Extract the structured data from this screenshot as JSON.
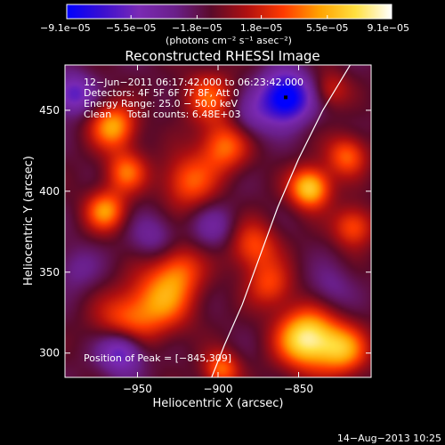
{
  "chart_data": {
    "type": "heatmap",
    "title": "Reconstructed RHESSI Image",
    "xlabel": "Heliocentric X (arcsec)",
    "ylabel": "Heliocentric Y (arcsec)",
    "xlim": [
      -995,
      -805
    ],
    "ylim": [
      285,
      478
    ],
    "x_ticks": [
      -950,
      -900,
      -850
    ],
    "x_tick_labels": [
      "−950",
      "−900",
      "−850"
    ],
    "y_ticks": [
      300,
      350,
      400,
      450
    ],
    "y_tick_labels": [
      "300",
      "350",
      "400",
      "450"
    ],
    "colorbar": {
      "min": -9.1e-05,
      "max": 9.1e-05,
      "ticks": [
        -9.1e-05,
        -5.5e-05,
        -1.8e-05,
        1.8e-05,
        5.5e-05,
        9.1e-05
      ],
      "tick_labels": [
        "−9.1e−05",
        "−5.5e−05",
        "−1.8e−05",
        "1.8e−05",
        "5.5e−05",
        "9.1e−05"
      ],
      "units": "(photons cm⁻² s⁻¹ asec⁻²)",
      "colors": [
        "#0000ff",
        "#3b0fd0",
        "#7a2ab4",
        "#6a1f8a",
        "#5a0a2a",
        "#b01010",
        "#ff3a00",
        "#ffa200",
        "#ffe040",
        "#ffffff"
      ]
    },
    "annotations": [
      "12−Jun−2011 06:17:42.000 to 06:23:42.000",
      "Detectors: 4F 5F 6F 7F 8F, Att 0",
      "Energy Range: 25.0 − 50.0 keV",
      "Clean     Total counts: 6.48E+03"
    ],
    "peak_label": "Position of Peak = [−845,309]",
    "peak": [
      -845,
      309
    ],
    "limb_curve": [
      [
        -904,
        285
      ],
      [
        -896,
        305
      ],
      [
        -885,
        330
      ],
      [
        -874,
        360
      ],
      [
        -863,
        390
      ],
      [
        -850,
        420
      ],
      [
        -835,
        450
      ],
      [
        -818,
        478
      ]
    ],
    "features": [
      {
        "x": -958,
        "y": 318,
        "amp": 4.8e-05,
        "sigma": 13
      },
      {
        "x": -935,
        "y": 333,
        "amp": 5.5e-05,
        "sigma": 14
      },
      {
        "x": -924,
        "y": 352,
        "amp": 4e-05,
        "sigma": 11
      },
      {
        "x": -970,
        "y": 388,
        "amp": 6e-05,
        "sigma": 9
      },
      {
        "x": -957,
        "y": 412,
        "amp": 5e-05,
        "sigma": 9
      },
      {
        "x": -965,
        "y": 440,
        "amp": 6.5e-05,
        "sigma": 10
      },
      {
        "x": -918,
        "y": 406,
        "amp": 4.8e-05,
        "sigma": 12
      },
      {
        "x": -896,
        "y": 428,
        "amp": 5.3e-05,
        "sigma": 11
      },
      {
        "x": -906,
        "y": 458,
        "amp": 4.5e-05,
        "sigma": 11
      },
      {
        "x": -878,
        "y": 366,
        "amp": 4.5e-05,
        "sigma": 11
      },
      {
        "x": -868,
        "y": 342,
        "amp": 4e-05,
        "sigma": 10
      },
      {
        "x": -845,
        "y": 309,
        "amp": 9.1e-05,
        "sigma": 13
      },
      {
        "x": -822,
        "y": 302,
        "amp": 5.8e-05,
        "sigma": 11
      },
      {
        "x": -843,
        "y": 402,
        "amp": 8e-05,
        "sigma": 9
      },
      {
        "x": -820,
        "y": 422,
        "amp": 5e-05,
        "sigma": 9
      },
      {
        "x": -816,
        "y": 378,
        "amp": 4.8e-05,
        "sigma": 9
      },
      {
        "x": -898,
        "y": 290,
        "amp": 5.2e-05,
        "sigma": 8
      },
      {
        "x": -830,
        "y": 463,
        "amp": 3e-05,
        "sigma": 8
      },
      {
        "x": -960,
        "y": 302,
        "amp": -6.5e-05,
        "sigma": 10
      },
      {
        "x": -858,
        "y": 458,
        "amp": -9.1e-05,
        "sigma": 11
      },
      {
        "x": -990,
        "y": 460,
        "amp": -5e-05,
        "sigma": 9
      },
      {
        "x": -940,
        "y": 372,
        "amp": -2.5e-05,
        "sigma": 10
      },
      {
        "x": -880,
        "y": 445,
        "amp": -2.5e-05,
        "sigma": 10
      },
      {
        "x": -988,
        "y": 352,
        "amp": -2e-05,
        "sigma": 10
      },
      {
        "x": -902,
        "y": 378,
        "amp": -2.5e-05,
        "sigma": 10
      },
      {
        "x": -830,
        "y": 340,
        "amp": -2e-05,
        "sigma": 10
      }
    ]
  },
  "footer": {
    "date": "14−Aug−2013 10:25"
  }
}
